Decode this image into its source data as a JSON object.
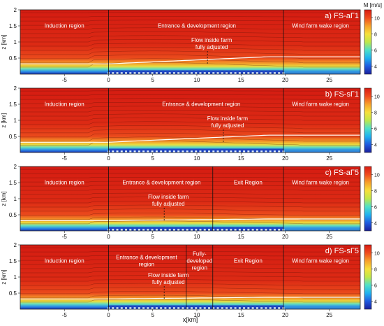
{
  "chart_data": {
    "type": "heatmap",
    "colorbar": {
      "label": "M [m/s]",
      "ticks": [
        4,
        6,
        8,
        10
      ],
      "range": [
        3,
        11
      ],
      "colors": [
        "#1a1f9c",
        "#1f5be0",
        "#1fb2ef",
        "#4fe0c8",
        "#bfe84a",
        "#f7e03a",
        "#f7a12a",
        "#f04b1e",
        "#d81b12"
      ]
    },
    "xlabel": "x[km]",
    "xticks": [
      -5,
      0,
      5,
      10,
      15,
      20,
      25
    ],
    "xlim": [
      -10,
      28.5
    ],
    "ylabel": "z [km]",
    "yticks": [
      0.5,
      1,
      1.5,
      2
    ],
    "ylim": [
      0,
      2
    ],
    "panels": [
      {
        "title": "a) FS-aΓ1",
        "boundaries_km": [
          0,
          19.8
        ],
        "regions": [
          {
            "label": "Induction region",
            "x": -5
          },
          {
            "label": "Entrance & development region",
            "x": 10
          },
          {
            "label": "Wind farm wake region",
            "x": 24
          }
        ],
        "annotations": [
          {
            "label": "Flow inside farm\nfully adjusted",
            "x": 11.2,
            "arrow_x": 11.2
          }
        ],
        "turbines_km": [
          0,
          19.8
        ]
      },
      {
        "title": "b) FS-sΓ1",
        "boundaries_km": [
          0,
          19.8
        ],
        "regions": [
          {
            "label": "Induction region",
            "x": -5
          },
          {
            "label": "Entrance & development region",
            "x": 10.5
          },
          {
            "label": "Wind farm wake region",
            "x": 24
          }
        ],
        "annotations": [
          {
            "label": "Flow inside farm\nfully adjusted",
            "x": 13,
            "arrow_x": 13
          }
        ],
        "turbines_km": [
          0,
          19.8
        ]
      },
      {
        "title": "c) FS-aΓ5",
        "boundaries_km": [
          0,
          11.8,
          19.8
        ],
        "regions": [
          {
            "label": "Induction region",
            "x": -5
          },
          {
            "label": "Entrance & development region",
            "x": 6
          },
          {
            "label": "Exit Region",
            "x": 15.8
          },
          {
            "label": "Wind farm wake region",
            "x": 24
          }
        ],
        "annotations": [
          {
            "label": "Flow inside farm\nfully adjusted",
            "x": 6.3,
            "arrow_x": 6.3
          }
        ],
        "turbines_km": [
          0,
          19.8
        ]
      },
      {
        "title": "d) FS-sΓ5",
        "boundaries_km": [
          0,
          8.8,
          11.8,
          19.8
        ],
        "regions": [
          {
            "label": "Induction region",
            "x": -5
          },
          {
            "label": "Entrance & development\nregion",
            "x": 4.3
          },
          {
            "label": "Fully-\ndeveloped\nregion",
            "x": 10.3
          },
          {
            "label": "Exit Region",
            "x": 15.8
          },
          {
            "label": "Wind farm wake region",
            "x": 24
          }
        ],
        "annotations": [
          {
            "label": "Flow inside farm\nfully adjusted",
            "x": 6.3,
            "arrow_x": 6.3
          }
        ],
        "turbines_km": [
          0,
          19.8
        ]
      }
    ]
  }
}
